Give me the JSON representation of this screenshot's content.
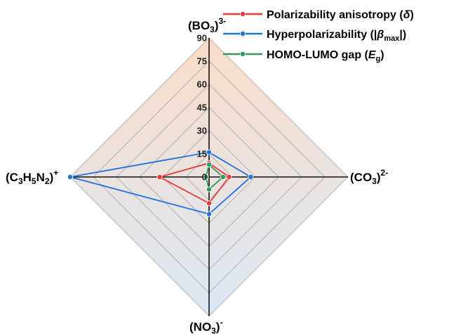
{
  "chart_data": {
    "type": "radar",
    "max": 90,
    "ticks": [
      "0",
      "15",
      "30",
      "45",
      "60",
      "75",
      "90"
    ],
    "axes": [
      {
        "name": "(BO3)3-",
        "base": "(BO",
        "sub": "3",
        "close": ")",
        "sup": "3-"
      },
      {
        "name": "(CO3)2-",
        "base": "(CO",
        "sub": "3",
        "close": ")",
        "sup": "2-"
      },
      {
        "name": "(NO3)-",
        "base": "(NO",
        "sub": "3",
        "close": ")",
        "sup": "-"
      },
      {
        "name": "(C3H5N2)+",
        "parts": [
          "(C",
          "3",
          "H",
          "5",
          "N",
          "2",
          ")"
        ],
        "sup": "+"
      }
    ],
    "series": [
      {
        "name": "Polarizability anisotropy (δ)",
        "label": "Polarizability anisotropy (",
        "sym": "δ",
        "tail": ")",
        "color": "#e8393a",
        "values": [
          9,
          13,
          17,
          32
        ]
      },
      {
        "name": "Hyperpolarizability (|βmax|)",
        "label": "Hyperpolarizability (|",
        "sym": "β",
        "symsub": "max",
        "tail": "|)",
        "color": "#1f73e0",
        "values": [
          16,
          27,
          24,
          90
        ]
      },
      {
        "name": "HOMO-LUMO gap (Eg)",
        "label": "HOMO-LUMO gap (",
        "sym": "E",
        "symsub": "g",
        "tail": ")",
        "color": "#2f9a5c",
        "values": [
          8,
          9,
          8,
          2
        ]
      }
    ],
    "legend_position": "top-right",
    "colors": {
      "grid": "#b4b4b4",
      "axis": "#111111",
      "fill_top": "#f9dcc8",
      "fill_bottom": "#dbe8f5"
    }
  }
}
